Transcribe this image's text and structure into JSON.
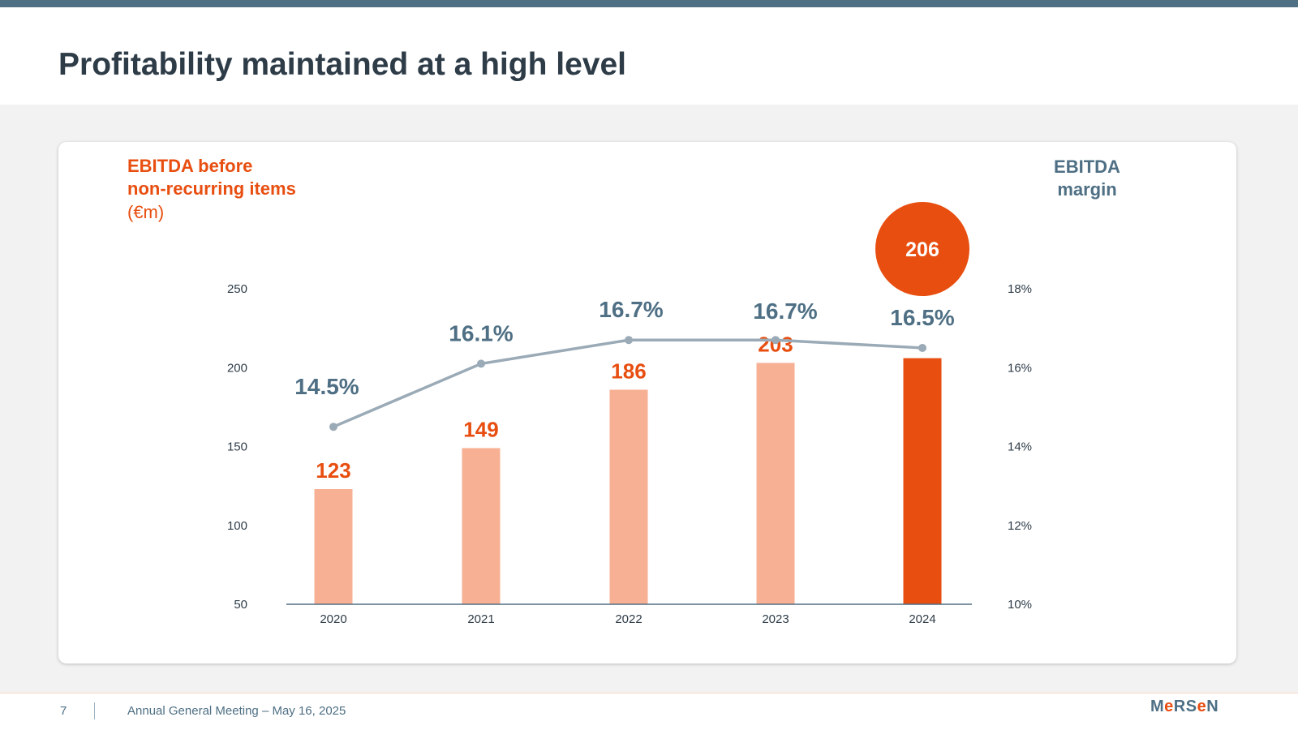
{
  "slide": {
    "title": "Profitability maintained at a high level",
    "page_number": "7",
    "footer_text": "Annual General Meeting – May 16, 2025",
    "logo": {
      "letters": [
        "M",
        "e",
        "R",
        "S",
        "e",
        "N"
      ],
      "accent": [
        "e",
        "e"
      ]
    },
    "colors": {
      "primary": "#4e6f84",
      "accent": "#e84e10",
      "bar_light": "#f7b093",
      "line": "#9aaab6"
    }
  },
  "chart_data": {
    "type": "bar",
    "left_axis_title": [
      "EBITDA before",
      "non-recurring items"
    ],
    "left_axis_unit": "(€m)",
    "right_axis_title": [
      "EBITDA",
      "margin"
    ],
    "categories": [
      "2020",
      "2021",
      "2022",
      "2023",
      "2024"
    ],
    "ylim": [
      50,
      250
    ],
    "yticks": [
      "250",
      "200",
      "150",
      "100",
      "50"
    ],
    "y2lim": [
      10,
      18
    ],
    "y2ticks": [
      "18%",
      "16%",
      "14%",
      "12%",
      "10%"
    ],
    "series": [
      {
        "type": "bar",
        "values": [
          123,
          149,
          186,
          203,
          206
        ],
        "labels": [
          "123",
          "149",
          "186",
          "203",
          "206"
        ],
        "highlight_index": 4
      },
      {
        "type": "line",
        "axis": "right",
        "values": [
          14.5,
          16.1,
          16.7,
          16.7,
          16.5
        ],
        "labels": [
          "14.5%",
          "16.1%",
          "16.7%",
          "16.7%",
          "16.5%"
        ]
      }
    ],
    "grid": false
  }
}
